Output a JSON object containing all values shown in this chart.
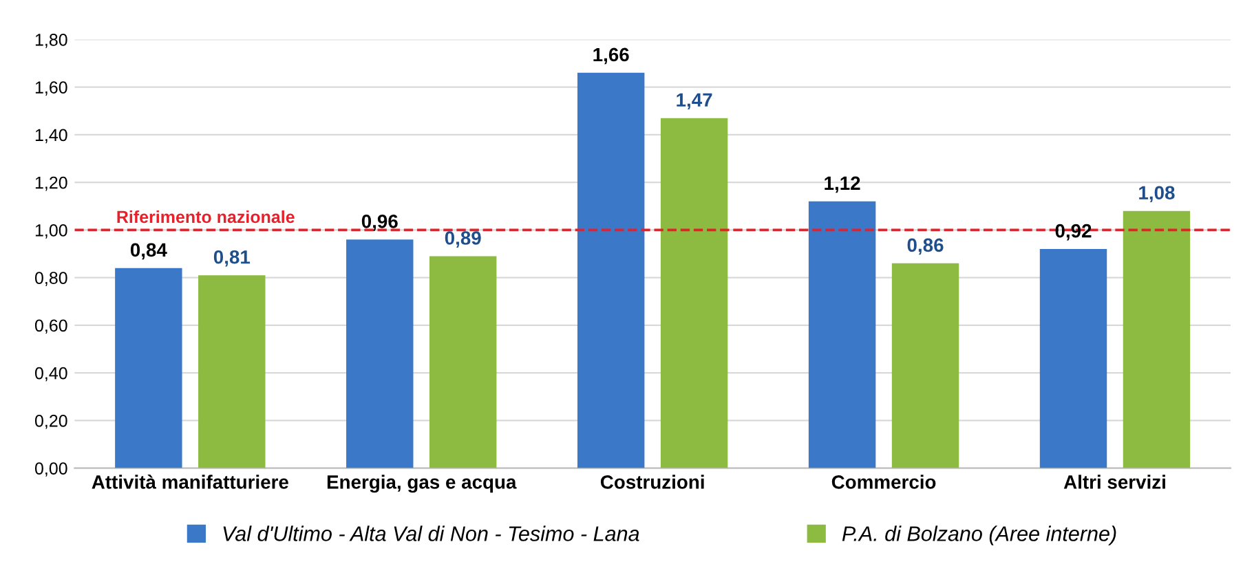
{
  "chart_data": {
    "type": "bar",
    "categories": [
      "Attività manifatturiere",
      "Energia, gas e acqua",
      "Costruzioni",
      "Commercio",
      "Altri servizi"
    ],
    "series": [
      {
        "name": "Val d'Ultimo - Alta Val di Non - Tesimo - Lana",
        "color": "#3b78c8",
        "values": [
          0.84,
          0.96,
          1.66,
          1.12,
          0.92
        ],
        "value_labels": [
          "0,84",
          "0,96",
          "1,66",
          "1,12",
          "0,92"
        ]
      },
      {
        "name": "P.A. di Bolzano (Aree interne)",
        "color": "#8dbb42",
        "values": [
          0.81,
          0.89,
          1.47,
          0.86,
          1.08
        ],
        "value_labels": [
          "0,81",
          "0,89",
          "1,47",
          "0,86",
          "1,08"
        ]
      }
    ],
    "ylim": [
      0,
      1.8
    ],
    "yticks": [
      {
        "value": 0,
        "label": "0,00"
      },
      {
        "value": 0.2,
        "label": "0,20"
      },
      {
        "value": 0.4,
        "label": "0,40"
      },
      {
        "value": 0.6,
        "label": "0,60"
      },
      {
        "value": 0.8,
        "label": "0,80"
      },
      {
        "value": 1.0,
        "label": "1,00"
      },
      {
        "value": 1.2,
        "label": "1,20"
      },
      {
        "value": 1.4,
        "label": "1,40"
      },
      {
        "value": 1.6,
        "label": "1,60"
      },
      {
        "value": 1.8,
        "label": "1,80"
      }
    ],
    "ref_lines": [
      {
        "axis": "y",
        "value": 1.0,
        "label": "Riferimento nazionale",
        "color": "#e8202a",
        "line_style": "dashed"
      }
    ],
    "grid": "y",
    "legend": "bottom"
  }
}
